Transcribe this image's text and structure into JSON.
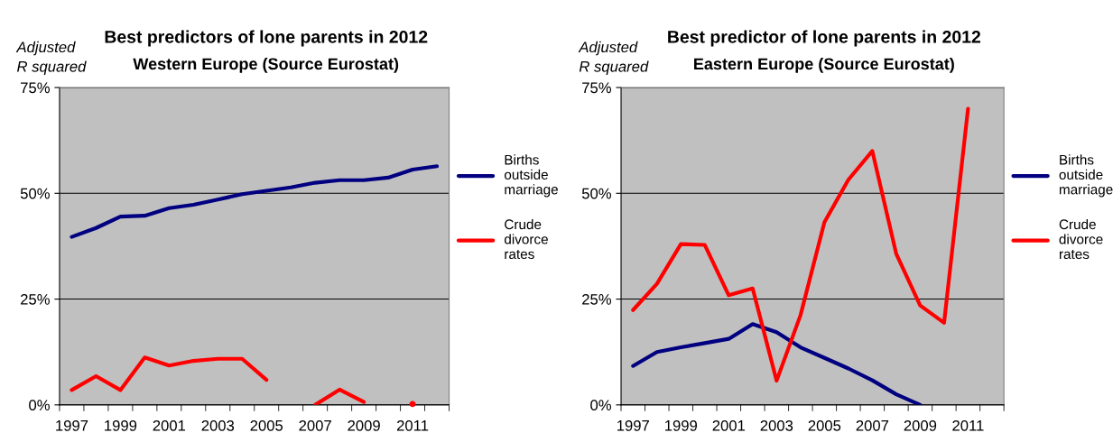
{
  "chart_data": [
    {
      "type": "line",
      "title": "Best predictors of lone parents in 2012",
      "subtitle": "Western Europe (Source Eurostat)",
      "ylabel": "Adjusted\nR squared",
      "categories": [
        "1997",
        null,
        "1999",
        null,
        "2001",
        null,
        "2003",
        null,
        "2005",
        null,
        "2007",
        null,
        "2009",
        null,
        "2011",
        null
      ],
      "series": [
        {
          "name": "Births\noutside\nmarriage",
          "color": "#000080",
          "values": [
            39.7,
            41.8,
            44.5,
            44.7,
            46.5,
            47.3,
            48.5,
            49.8,
            50.6,
            51.4,
            52.5,
            53.1,
            53.1,
            53.7,
            55.6,
            56.4
          ]
        },
        {
          "name": "Crude\ndivorce\nrates",
          "color": "#ff0000",
          "values": [
            3.5,
            6.8,
            3.5,
            11.2,
            9.3,
            10.4,
            10.9,
            10.9,
            5.9,
            null,
            0,
            3.6,
            0.7,
            null,
            0.2,
            null
          ]
        }
      ],
      "ylim": [
        0,
        75
      ],
      "yticks": [
        {
          "value": 0,
          "label": "0%"
        },
        {
          "value": 25,
          "label": "25%"
        },
        {
          "value": 50,
          "label": "50%"
        },
        {
          "value": 75,
          "label": "75%"
        }
      ],
      "grid": "y",
      "legend": "right",
      "marker": "none",
      "line_style": "solid"
    },
    {
      "type": "line",
      "title": "Best predictor of lone parents in 2012",
      "subtitle": "Eastern Europe (Source Eurostat)",
      "ylabel": "Adjusted\nR squared",
      "categories": [
        "1997",
        null,
        "1999",
        null,
        "2001",
        null,
        "2003",
        null,
        "2005",
        null,
        "2007",
        null,
        "2009",
        null,
        "2011",
        null
      ],
      "series": [
        {
          "name": "Births\noutside\nmarriage",
          "color": "#000080",
          "values": [
            9.2,
            12.5,
            13.6,
            14.6,
            15.6,
            19.1,
            17.2,
            13.6,
            11.1,
            8.6,
            5.8,
            2.5,
            0,
            null,
            null,
            null
          ]
        },
        {
          "name": "Crude\ndivorce\nrates",
          "color": "#ff0000",
          "values": [
            22.4,
            28.6,
            38.0,
            37.8,
            25.9,
            27.5,
            5.7,
            21.2,
            43.2,
            53.2,
            60.0,
            35.7,
            23.5,
            19.4,
            70.0,
            null
          ]
        }
      ],
      "ylim": [
        0,
        75
      ],
      "yticks": [
        {
          "value": 0,
          "label": "0%"
        },
        {
          "value": 25,
          "label": "25%"
        },
        {
          "value": 50,
          "label": "50%"
        },
        {
          "value": 75,
          "label": "75%"
        }
      ],
      "grid": "y",
      "legend": "right",
      "marker": "none",
      "line_style": "solid"
    }
  ]
}
